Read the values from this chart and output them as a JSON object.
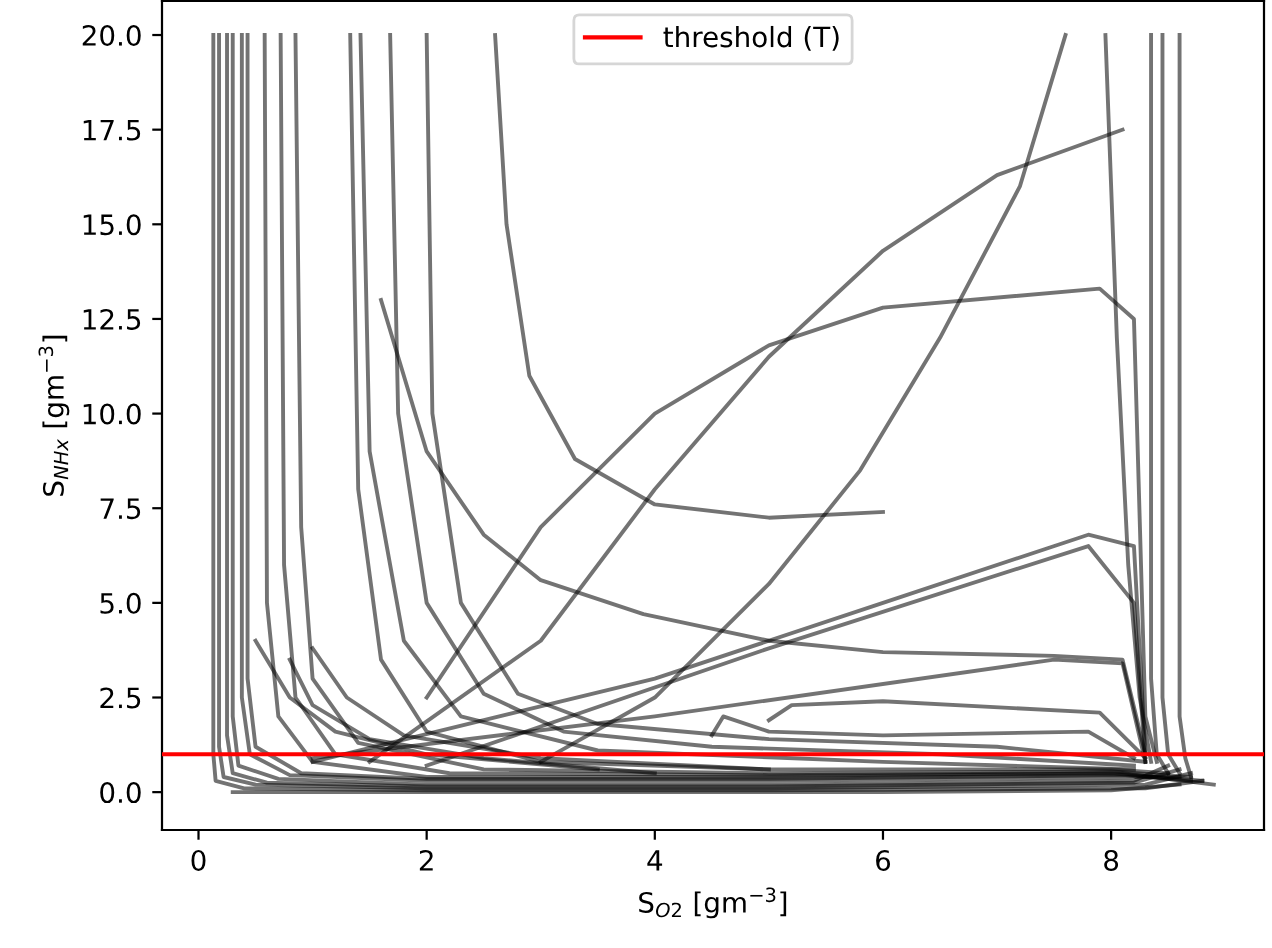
{
  "chart_data": {
    "type": "line",
    "xlabel": "S$_{O2}$ [gm$^{−3}$]",
    "ylabel": "S$_{NHx}$ [gm$^{−3}$]",
    "xlim": [
      -0.32,
      9.34
    ],
    "ylim": [
      -1.0,
      20.9
    ],
    "xticks": [
      0,
      2,
      4,
      6,
      8
    ],
    "yticks": [
      {
        "value": 0,
        "label": "0.0"
      },
      {
        "value": 2.5,
        "label": "2.5"
      },
      {
        "value": 5,
        "label": "5.0"
      },
      {
        "value": 7.5,
        "label": "7.5"
      },
      {
        "value": 10,
        "label": "10.0"
      },
      {
        "value": 12.5,
        "label": "12.5"
      },
      {
        "value": 15,
        "label": "15.0"
      },
      {
        "value": 17.5,
        "label": "17.5"
      },
      {
        "value": 20,
        "label": "20.0"
      }
    ],
    "grid": false,
    "legend": "top",
    "ref_lines": [
      {
        "axis": "y",
        "value": 1.0,
        "label": "threshold (T)",
        "color": "#ff0000"
      }
    ],
    "series": [
      {
        "color": "#000000",
        "x": [
          0.13,
          0.13,
          0.15,
          0.4,
          2,
          5,
          8.3,
          8.8
        ],
        "values": [
          20,
          1.0,
          0.3,
          0.1,
          0.05,
          0.05,
          0.1,
          0.3
        ]
      },
      {
        "color": "#000000",
        "x": [
          0.18,
          0.18,
          0.22,
          0.5,
          2,
          5,
          8.3,
          8.7
        ],
        "values": [
          20,
          1.2,
          0.4,
          0.2,
          0.1,
          0.1,
          0.2,
          0.5
        ]
      },
      {
        "color": "#000000",
        "x": [
          0.25,
          0.25,
          0.3,
          0.6,
          2,
          5,
          8.2,
          8.6
        ],
        "values": [
          20,
          1.5,
          0.5,
          0.25,
          0.15,
          0.15,
          0.25,
          0.6
        ]
      },
      {
        "color": "#000000",
        "x": [
          0.3,
          0.3,
          0.35,
          0.7,
          2,
          5,
          8.2,
          8.5
        ],
        "values": [
          20,
          2.0,
          0.7,
          0.35,
          0.2,
          0.2,
          0.3,
          0.7
        ]
      },
      {
        "color": "#000000",
        "x": [
          0.38,
          0.38,
          0.45,
          0.8,
          2,
          5,
          8.2,
          8.6
        ],
        "values": [
          20,
          2.5,
          1.0,
          0.45,
          0.3,
          0.3,
          0.4,
          0.4
        ]
      },
      {
        "color": "#000000",
        "x": [
          0.43,
          0.43,
          0.5,
          0.9,
          2,
          5,
          8.1,
          8.7
        ],
        "values": [
          20,
          3.0,
          1.2,
          0.5,
          0.35,
          0.35,
          0.45,
          0.3
        ]
      },
      {
        "color": "#000000",
        "x": [
          0.58,
          0.6,
          0.7,
          1.0,
          2,
          5,
          8.1,
          8.9
        ],
        "values": [
          20,
          5.0,
          2.0,
          0.8,
          0.4,
          0.4,
          0.5,
          0.2
        ]
      },
      {
        "color": "#000000",
        "x": [
          0.72,
          0.75,
          0.85,
          1.2,
          2.2,
          5,
          8.0,
          8.8
        ],
        "values": [
          20,
          6.0,
          2.5,
          1.0,
          0.5,
          0.45,
          0.5,
          0.3
        ]
      },
      {
        "color": "#000000",
        "x": [
          0.85,
          0.9,
          1.0,
          1.4,
          2.5,
          5,
          8.0,
          8.7
        ],
        "values": [
          20,
          7.0,
          3.0,
          1.3,
          0.6,
          0.5,
          0.55,
          0.4
        ]
      },
      {
        "color": "#000000",
        "x": [
          1.33,
          1.4,
          1.6,
          2.0,
          3.0,
          5,
          8.0,
          8.5
        ],
        "values": [
          20,
          8.0,
          3.5,
          1.6,
          0.8,
          0.6,
          0.6,
          0.5
        ]
      },
      {
        "color": "#000000",
        "x": [
          1.42,
          1.5,
          1.8,
          2.3,
          3.5,
          6,
          8.2
        ],
        "values": [
          20,
          9.0,
          4.0,
          2.0,
          1.1,
          0.8,
          0.6
        ]
      },
      {
        "color": "#000000",
        "x": [
          1.68,
          1.75,
          2.0,
          2.5,
          3.2,
          4.5,
          6.5,
          8.2
        ],
        "values": [
          20,
          10.0,
          5.0,
          2.6,
          1.6,
          1.2,
          1.0,
          0.7
        ]
      },
      {
        "color": "#000000",
        "x": [
          2.0,
          2.05,
          2.3,
          2.8,
          3.5,
          5,
          7,
          8.3
        ],
        "values": [
          20,
          10.0,
          5.0,
          2.6,
          1.8,
          1.4,
          1.2,
          0.8
        ]
      },
      {
        "color": "#000000",
        "x": [
          2.6,
          2.7,
          2.9,
          3.3,
          4.0,
          5.0,
          6.0
        ],
        "values": [
          20,
          15.0,
          11.0,
          8.8,
          7.6,
          7.25,
          7.4
        ]
      },
      {
        "color": "#000000",
        "x": [
          1.6,
          2.0,
          2.5,
          3.0,
          3.9,
          5.0,
          6.0,
          7.5,
          8.1,
          8.3
        ],
        "values": [
          13.0,
          9.0,
          6.8,
          5.6,
          4.7,
          4.0,
          3.7,
          3.6,
          3.5,
          1.0
        ]
      },
      {
        "color": "#000000",
        "x": [
          1.5,
          3.0,
          4.0,
          5.0,
          6.0,
          7.0,
          8.1
        ],
        "values": [
          0.8,
          4.0,
          8.0,
          11.5,
          14.3,
          16.3,
          17.5
        ]
      },
      {
        "color": "#000000",
        "x": [
          2.0,
          3.0,
          4.0,
          5.0,
          6.0,
          7.9,
          8.2,
          8.3,
          8.4
        ],
        "values": [
          2.5,
          7.0,
          10.0,
          11.8,
          12.8,
          13.3,
          12.5,
          2.0,
          0.8
        ]
      },
      {
        "color": "#000000",
        "x": [
          3.0,
          4.0,
          5.0,
          5.8,
          6.5,
          7.2,
          7.6
        ],
        "values": [
          0.8,
          2.5,
          5.5,
          8.5,
          12.0,
          16.0,
          20
        ]
      },
      {
        "color": "#000000",
        "x": [
          7.95,
          8.05,
          8.15,
          8.25,
          8.35
        ],
        "values": [
          20,
          12.0,
          6.0,
          2.5,
          0.8
        ]
      },
      {
        "color": "#000000",
        "x": [
          1.0,
          4.0,
          6.0,
          7.8,
          8.2,
          8.3
        ],
        "values": [
          0.8,
          3.0,
          5.0,
          6.8,
          6.5,
          1.0
        ]
      },
      {
        "color": "#000000",
        "x": [
          2.0,
          5.0,
          7.8,
          8.2,
          8.3
        ],
        "values": [
          0.7,
          3.8,
          6.5,
          5.0,
          0.8
        ]
      },
      {
        "color": "#000000",
        "x": [
          1.0,
          4.0,
          7.5,
          8.1,
          8.3
        ],
        "values": [
          0.9,
          2.0,
          3.5,
          3.4,
          0.8
        ]
      },
      {
        "color": "#000000",
        "x": [
          4.5,
          4.6,
          5.0,
          6.0,
          7.8,
          8.2
        ],
        "values": [
          1.5,
          2.0,
          1.6,
          1.5,
          1.6,
          0.9
        ]
      },
      {
        "color": "#000000",
        "x": [
          5.0,
          5.2,
          6.0,
          7.9,
          8.3
        ],
        "values": [
          1.9,
          2.3,
          2.4,
          2.1,
          0.9
        ]
      },
      {
        "color": "#000000",
        "x": [
          8.35,
          8.35,
          8.4,
          8.5
        ],
        "values": [
          20,
          3.0,
          1.0,
          0.5
        ]
      },
      {
        "color": "#000000",
        "x": [
          8.45,
          8.45,
          8.5,
          8.6
        ],
        "values": [
          20,
          2.5,
          1.0,
          0.5
        ]
      },
      {
        "color": "#000000",
        "x": [
          8.6,
          8.6,
          8.65,
          8.7
        ],
        "values": [
          20,
          2.0,
          0.9,
          0.4
        ]
      },
      {
        "color": "#000000",
        "x": [
          0.5,
          0.8,
          1.2,
          2.0,
          3.5
        ],
        "values": [
          4.0,
          2.5,
          1.6,
          1.0,
          0.6
        ]
      },
      {
        "color": "#000000",
        "x": [
          0.8,
          1.0,
          1.5,
          2.5,
          4.0
        ],
        "values": [
          3.5,
          2.3,
          1.4,
          0.9,
          0.5
        ]
      },
      {
        "color": "#000000",
        "x": [
          1.0,
          1.3,
          1.8,
          3.0,
          5.0
        ],
        "values": [
          3.8,
          2.5,
          1.5,
          0.9,
          0.6
        ]
      },
      {
        "color": "#000000",
        "x": [
          0.3,
          1.0,
          3.0,
          6.0,
          8.0,
          8.6
        ],
        "values": [
          0.0,
          0.0,
          0.0,
          0.0,
          0.05,
          0.2
        ]
      }
    ]
  }
}
